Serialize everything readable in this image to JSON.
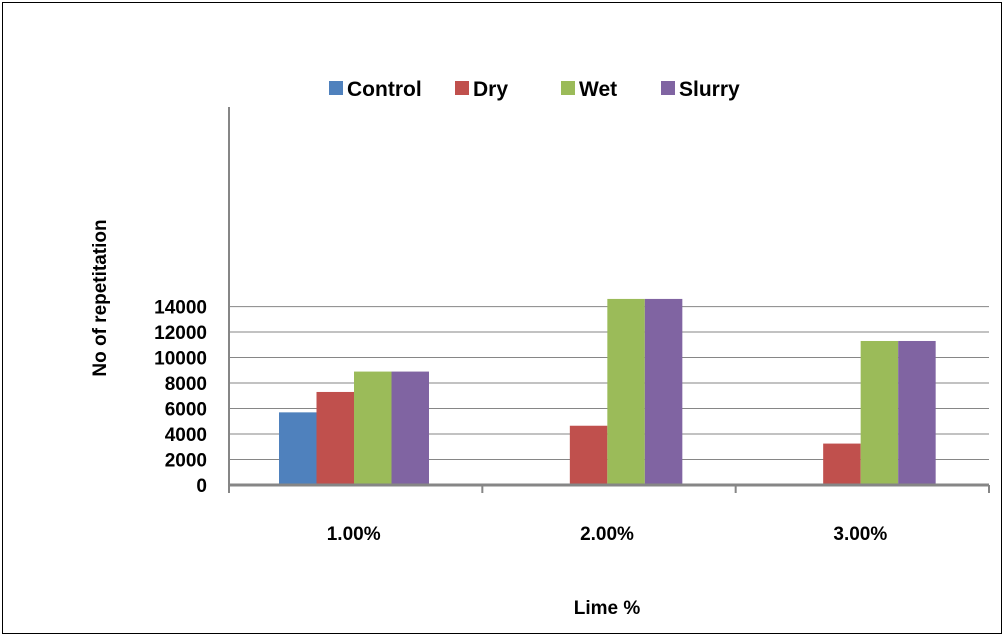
{
  "chart_data": {
    "type": "bar",
    "categories": [
      "1.00%",
      "2.00%",
      "3.00%"
    ],
    "series": [
      {
        "name": "Control",
        "values": [
          5700,
          0,
          0
        ],
        "color": "#4f81bd"
      },
      {
        "name": "Dry",
        "values": [
          7300,
          4650,
          3250
        ],
        "color": "#c0504d"
      },
      {
        "name": "Wet",
        "values": [
          8900,
          14600,
          11300
        ],
        "color": "#9bbb59"
      },
      {
        "name": "Slurry",
        "values": [
          8900,
          14600,
          11300
        ],
        "color": "#8064a2"
      }
    ],
    "title": "",
    "xlabel": "Lime %",
    "ylabel": "No of repetitation",
    "ylim": [
      0,
      15000
    ],
    "yticks": [
      0,
      2000,
      4000,
      6000,
      8000,
      10000,
      12000,
      14000
    ],
    "grid": true,
    "legend_position": "top"
  }
}
